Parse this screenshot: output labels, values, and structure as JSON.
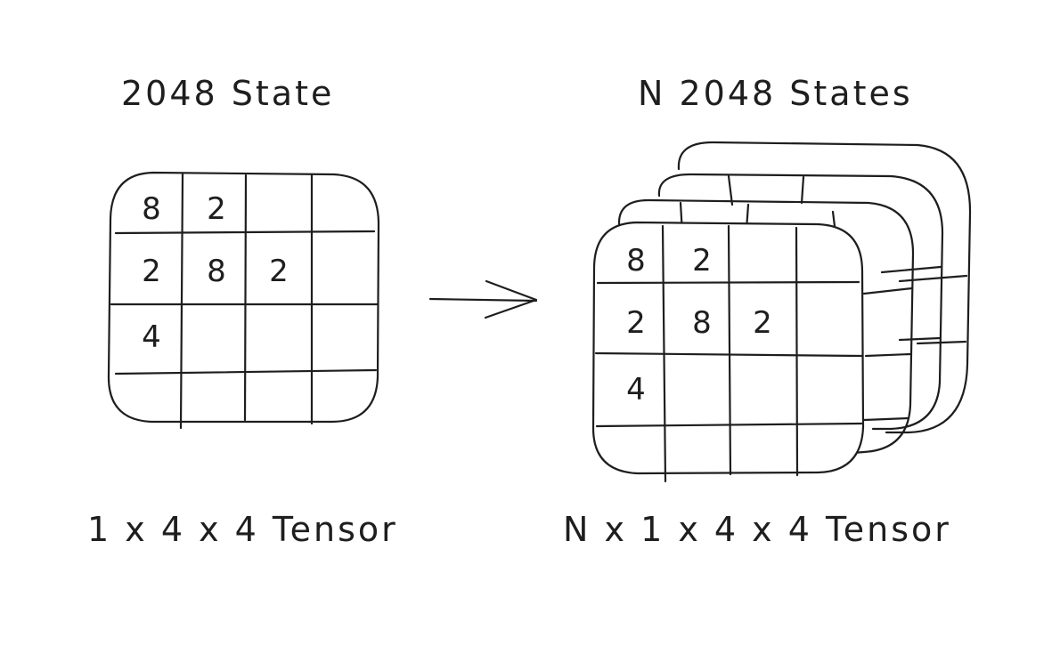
{
  "left_panel": {
    "title": "2048 State",
    "caption": "1 x 4 x 4 Tensor",
    "grid": [
      [
        "8",
        "2",
        "",
        ""
      ],
      [
        "2",
        "8",
        "2",
        ""
      ],
      [
        "4",
        "",
        "",
        ""
      ],
      [
        "",
        "",
        "",
        ""
      ]
    ]
  },
  "right_panel": {
    "title": "N 2048 States",
    "caption": "N x 1 x 4 x 4 Tensor",
    "grid": [
      [
        "8",
        "2",
        "",
        ""
      ],
      [
        "2",
        "8",
        "2",
        ""
      ],
      [
        "4",
        "",
        "",
        ""
      ],
      [
        "",
        "",
        "",
        ""
      ]
    ],
    "stacked_layers_behind": 3
  },
  "colors": {
    "stroke": "#1e1e1e",
    "background": "#ffffff"
  }
}
